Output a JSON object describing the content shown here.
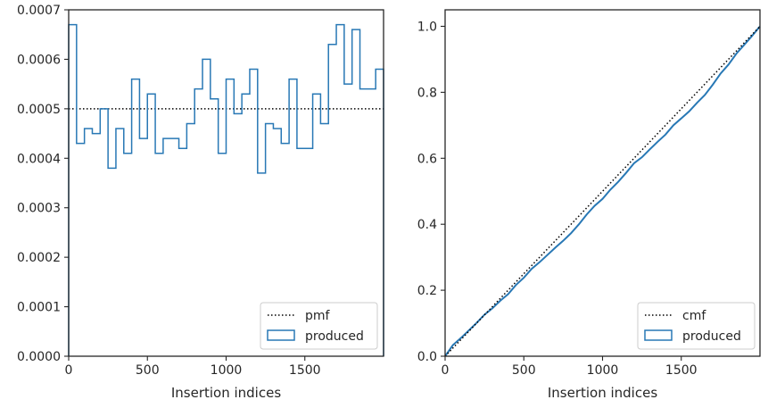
{
  "chart_data": [
    {
      "type": "step-histogram",
      "xlabel": "Insertion indices",
      "ylabel": "",
      "xlim": [
        0,
        2000
      ],
      "ylim": [
        0,
        0.0007
      ],
      "x_ticks": [
        0,
        500,
        1000,
        1500
      ],
      "y_ticks": [
        0.0,
        0.0001,
        0.0002,
        0.0003,
        0.0004,
        0.0005,
        0.0006,
        0.0007
      ],
      "y_tick_labels": [
        "0.0000",
        "0.0001",
        "0.0002",
        "0.0003",
        "0.0004",
        "0.0005",
        "0.0006",
        "0.0007"
      ],
      "bin_edges": [
        0,
        50,
        100,
        150,
        200,
        250,
        300,
        350,
        400,
        450,
        500,
        550,
        600,
        650,
        700,
        750,
        800,
        850,
        900,
        950,
        1000,
        1050,
        1100,
        1150,
        1200,
        1250,
        1300,
        1350,
        1400,
        1450,
        1500,
        1550,
        1600,
        1650,
        1700,
        1750,
        1800,
        1850,
        1900,
        1950,
        2000
      ],
      "series": [
        {
          "name": "pmf",
          "style": "dotted",
          "color": "#000000",
          "y": 0.0005
        },
        {
          "name": "produced",
          "style": "step",
          "color": "#2878b5",
          "values": [
            0.00067,
            0.00043,
            0.00046,
            0.00045,
            0.0005,
            0.00038,
            0.00046,
            0.00041,
            0.00056,
            0.00044,
            0.00053,
            0.00041,
            0.00044,
            0.00044,
            0.00042,
            0.00047,
            0.00054,
            0.0006,
            0.00052,
            0.00041,
            0.00056,
            0.00049,
            0.00053,
            0.00058,
            0.00037,
            0.00047,
            0.00046,
            0.00043,
            0.00056,
            0.00042,
            0.00042,
            0.00053,
            0.00047,
            0.00063,
            0.00067,
            0.00055,
            0.00066,
            0.00054,
            0.00054,
            0.00058
          ]
        }
      ],
      "legend": {
        "position": "bottom-right",
        "entries": [
          "pmf",
          "produced"
        ]
      }
    },
    {
      "type": "cumulative-step",
      "xlabel": "Insertion indices",
      "ylabel": "",
      "xlim": [
        0,
        2000
      ],
      "ylim": [
        0,
        1.05
      ],
      "x_ticks": [
        0,
        500,
        1000,
        1500
      ],
      "y_ticks": [
        0.0,
        0.2,
        0.4,
        0.6,
        0.8,
        1.0
      ],
      "y_tick_labels": [
        "0.0",
        "0.2",
        "0.4",
        "0.6",
        "0.8",
        "1.0"
      ],
      "series": [
        {
          "name": "cmf",
          "style": "dotted",
          "color": "#000000",
          "x": [
            0,
            2000
          ],
          "y": [
            0,
            1.0
          ]
        },
        {
          "name": "produced",
          "style": "step",
          "color": "#2878b5",
          "x": [
            0,
            50,
            100,
            150,
            200,
            250,
            300,
            350,
            400,
            450,
            500,
            550,
            600,
            650,
            700,
            750,
            800,
            850,
            900,
            950,
            1000,
            1050,
            1100,
            1150,
            1200,
            1250,
            1300,
            1350,
            1400,
            1450,
            1500,
            1550,
            1600,
            1650,
            1700,
            1750,
            1800,
            1850,
            1900,
            1950,
            2000
          ],
          "y": [
            0,
            0.034,
            0.055,
            0.078,
            0.101,
            0.126,
            0.145,
            0.168,
            0.188,
            0.216,
            0.238,
            0.265,
            0.285,
            0.307,
            0.329,
            0.35,
            0.373,
            0.4,
            0.43,
            0.456,
            0.477,
            0.505,
            0.529,
            0.556,
            0.585,
            0.603,
            0.627,
            0.65,
            0.672,
            0.7,
            0.721,
            0.742,
            0.768,
            0.792,
            0.823,
            0.857,
            0.884,
            0.917,
            0.944,
            0.971,
            1.0
          ]
        }
      ],
      "legend": {
        "position": "bottom-right",
        "entries": [
          "cmf",
          "produced"
        ]
      }
    }
  ]
}
